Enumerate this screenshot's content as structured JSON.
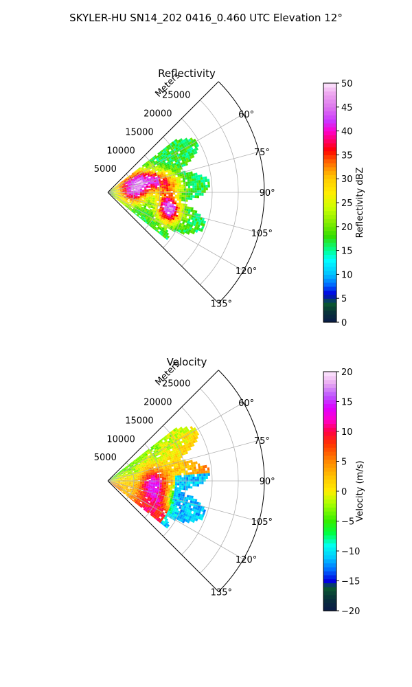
{
  "figure_title": "SKYLER-HU  SN14_202  0416_0.460 UTC Elevation 12°",
  "chart_data": [
    {
      "type": "heatmap",
      "title": "Reflectivity",
      "projection": "polar-sector",
      "radial_axis_label": "Meters",
      "radial_ticks": [
        5000,
        10000,
        15000,
        20000,
        25000
      ],
      "radial_tick_labels": [
        "5000",
        "10000",
        "15000",
        "20000",
        "25000"
      ],
      "radial_limit": [
        0,
        30000
      ],
      "azimuth_range_deg": [
        45,
        135
      ],
      "azimuth_tick_labels": [
        "60°",
        "75°",
        "90°",
        "105°",
        "120°",
        "135°"
      ],
      "azimuth_ticks_deg": [
        60,
        75,
        90,
        105,
        120,
        135
      ],
      "grid": true,
      "colorbar": {
        "label": "Reflectivity dBZ",
        "range": [
          0,
          50
        ],
        "ticks": [
          "0",
          "5",
          "10",
          "15",
          "20",
          "25",
          "30",
          "35",
          "40",
          "45",
          "50"
        ],
        "stops": [
          {
            "v": 0,
            "color": "#0a1a4a"
          },
          {
            "v": 2,
            "color": "#08303a"
          },
          {
            "v": 4,
            "color": "#0a5a30"
          },
          {
            "v": 6,
            "color": "#0000e0"
          },
          {
            "v": 8,
            "color": "#0070ff"
          },
          {
            "v": 10,
            "color": "#00bfff"
          },
          {
            "v": 13,
            "color": "#00ffff"
          },
          {
            "v": 15,
            "color": "#00ff99"
          },
          {
            "v": 18,
            "color": "#33dd00"
          },
          {
            "v": 21,
            "color": "#88ee00"
          },
          {
            "v": 24,
            "color": "#ccff00"
          },
          {
            "v": 27,
            "color": "#ffee00"
          },
          {
            "v": 30,
            "color": "#ffcc00"
          },
          {
            "v": 32,
            "color": "#ff9900"
          },
          {
            "v": 34,
            "color": "#ff5500"
          },
          {
            "v": 36,
            "color": "#ff0000"
          },
          {
            "v": 38,
            "color": "#ff0066"
          },
          {
            "v": 40,
            "color": "#ff00cc"
          },
          {
            "v": 42,
            "color": "#cc33ff"
          },
          {
            "v": 45,
            "color": "#dd77ee"
          },
          {
            "v": 48,
            "color": "#eeaaf0"
          },
          {
            "v": 50,
            "color": "#fde8fd"
          }
        ]
      },
      "echo_region": {
        "azimuth_deg": [
          52,
          128
        ],
        "range_m": [
          0,
          19500
        ]
      },
      "features": [
        {
          "az": 75,
          "r": 9000,
          "value": 38
        },
        {
          "az": 70,
          "r": 6000,
          "value": 42
        },
        {
          "az": 82,
          "r": 12000,
          "value": 32
        },
        {
          "az": 100,
          "r": 11500,
          "value": 35
        },
        {
          "az": 108,
          "r": 12500,
          "value": 38
        },
        {
          "az": 96,
          "r": 5500,
          "value": 30
        },
        {
          "az": 88,
          "r": 3500,
          "value": 26
        },
        {
          "az": 62,
          "r": 2500,
          "value": 25
        }
      ]
    },
    {
      "type": "heatmap",
      "title": "Velocity",
      "projection": "polar-sector",
      "radial_axis_label": "Meters",
      "radial_ticks": [
        5000,
        10000,
        15000,
        20000,
        25000
      ],
      "radial_tick_labels": [
        "5000",
        "10000",
        "15000",
        "20000",
        "25000"
      ],
      "radial_limit": [
        0,
        30000
      ],
      "azimuth_range_deg": [
        45,
        135
      ],
      "azimuth_tick_labels": [
        "60°",
        "75°",
        "90°",
        "105°",
        "120°",
        "135°"
      ],
      "azimuth_ticks_deg": [
        60,
        75,
        90,
        105,
        120,
        135
      ],
      "grid": true,
      "colorbar": {
        "label": "Velocity (m/s)",
        "range": [
          -20,
          20
        ],
        "ticks": [
          "−20",
          "−15",
          "−10",
          "−5",
          "0",
          "5",
          "10",
          "15",
          "20"
        ],
        "stops": [
          {
            "v": -20,
            "color": "#0a1a4a"
          },
          {
            "v": -18,
            "color": "#08303a"
          },
          {
            "v": -16,
            "color": "#0a5a30"
          },
          {
            "v": -15,
            "color": "#0000e0"
          },
          {
            "v": -13,
            "color": "#0070ff"
          },
          {
            "v": -11,
            "color": "#00ccff"
          },
          {
            "v": -9,
            "color": "#00ffee"
          },
          {
            "v": -7,
            "color": "#00ff44"
          },
          {
            "v": -5,
            "color": "#33ee00"
          },
          {
            "v": -2,
            "color": "#aaff00"
          },
          {
            "v": 0,
            "color": "#ffee00"
          },
          {
            "v": 2,
            "color": "#ffcc00"
          },
          {
            "v": 5,
            "color": "#ff8800"
          },
          {
            "v": 8,
            "color": "#ff3300"
          },
          {
            "v": 10,
            "color": "#ff0044"
          },
          {
            "v": 12,
            "color": "#ff00cc"
          },
          {
            "v": 14,
            "color": "#dd00ff"
          },
          {
            "v": 16,
            "color": "#bb55ff"
          },
          {
            "v": 18,
            "color": "#e8a8f0"
          },
          {
            "v": 20,
            "color": "#fde8fd"
          }
        ]
      },
      "echo_region": {
        "azimuth_deg": [
          52,
          128
        ],
        "range_m": [
          0,
          19500
        ]
      },
      "features": [
        {
          "az": 62,
          "r": 6000,
          "value": -4
        },
        {
          "az": 75,
          "r": 8000,
          "value": 2
        },
        {
          "az": 90,
          "r": 9000,
          "value": 11
        },
        {
          "az": 100,
          "r": 8000,
          "value": 9
        },
        {
          "az": 112,
          "r": 10000,
          "value": 12
        },
        {
          "az": 95,
          "r": 15000,
          "value": -11
        },
        {
          "az": 105,
          "r": 14000,
          "value": -12
        },
        {
          "az": 110,
          "r": 4000,
          "value": 2
        }
      ]
    }
  ]
}
